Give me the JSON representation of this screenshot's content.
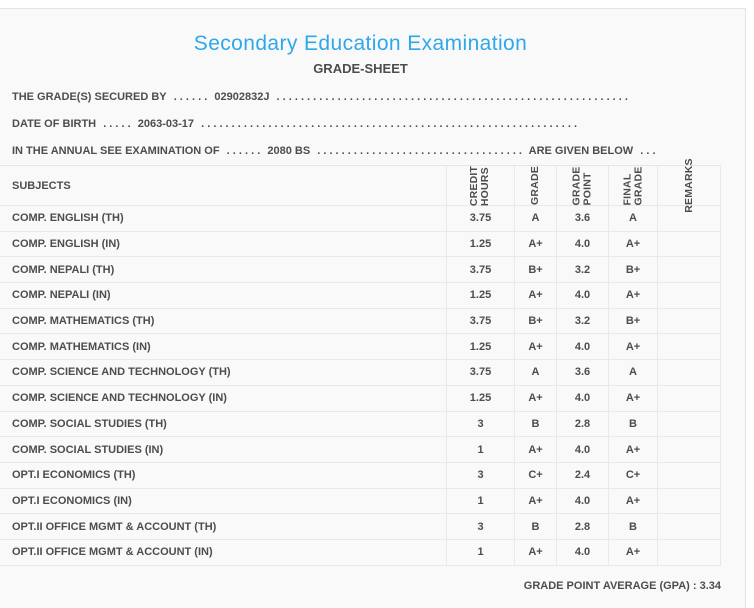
{
  "colors": {
    "accent_blue": "#2fa8e9",
    "panel_bg": "#f9f9f9",
    "text": "#4d4d4d",
    "line": "#e9e9e9"
  },
  "header": {
    "title": "Secondary Education Examination",
    "subtitle": "GRADE-SHEET"
  },
  "info_lines": {
    "line1": {
      "label": "THE GRADE(S) SECURED BY",
      "dots_before": ". . . . . .",
      "value": "02902832J",
      "dots_after": ". . . . . . . . . . . . . . . . . . . . . . . . . . . . . . . . . . . . . . . . . . . . . . . . . . . . . . . . . ."
    },
    "line2": {
      "label": "DATE OF BIRTH",
      "dots_before": ". . . . .",
      "value": "2063-03-17",
      "dots_after": ". . . . . . . . . . . . . . . . . . . . . . . . . . . . . . . . . . . . . . . . . . . . . . . . . . . . . . . . . . . . . ."
    },
    "line3": {
      "label": "IN THE ANNUAL SEE EXAMINATION OF",
      "dots_before": ". . . . . .",
      "value": "2080 BS",
      "dots_after": ". . . . . . . . . . . . . . . . . . . . . . . . . . . . . . . . . .",
      "suffix": "ARE GIVEN BELOW",
      "dots_end": ". . ."
    }
  },
  "table": {
    "subjects_header": "SUBJECTS",
    "column_headers": {
      "credit_hours": "CREDIT\nHOURS",
      "grade": "GRADE",
      "grade_point": "GRADE\nPOINT",
      "final_grade": "FINAL\nGRADE",
      "remarks": "REMARKS"
    },
    "rows": [
      {
        "subject": "COMP. ENGLISH (TH)",
        "credit_hours": "3.75",
        "grade": "A",
        "grade_point": "3.6",
        "final_grade": "A",
        "remarks": ""
      },
      {
        "subject": "COMP. ENGLISH (IN)",
        "credit_hours": "1.25",
        "grade": "A+",
        "grade_point": "4.0",
        "final_grade": "A+",
        "remarks": ""
      },
      {
        "subject": "COMP. NEPALI (TH)",
        "credit_hours": "3.75",
        "grade": "B+",
        "grade_point": "3.2",
        "final_grade": "B+",
        "remarks": ""
      },
      {
        "subject": "COMP. NEPALI (IN)",
        "credit_hours": "1.25",
        "grade": "A+",
        "grade_point": "4.0",
        "final_grade": "A+",
        "remarks": ""
      },
      {
        "subject": "COMP. MATHEMATICS (TH)",
        "credit_hours": "3.75",
        "grade": "B+",
        "grade_point": "3.2",
        "final_grade": "B+",
        "remarks": ""
      },
      {
        "subject": "COMP. MATHEMATICS (IN)",
        "credit_hours": "1.25",
        "grade": "A+",
        "grade_point": "4.0",
        "final_grade": "A+",
        "remarks": ""
      },
      {
        "subject": "COMP. SCIENCE AND TECHNOLOGY (TH)",
        "credit_hours": "3.75",
        "grade": "A",
        "grade_point": "3.6",
        "final_grade": "A",
        "remarks": ""
      },
      {
        "subject": "COMP. SCIENCE AND TECHNOLOGY (IN)",
        "credit_hours": "1.25",
        "grade": "A+",
        "grade_point": "4.0",
        "final_grade": "A+",
        "remarks": ""
      },
      {
        "subject": "COMP. SOCIAL STUDIES (TH)",
        "credit_hours": "3",
        "grade": "B",
        "grade_point": "2.8",
        "final_grade": "B",
        "remarks": ""
      },
      {
        "subject": "COMP. SOCIAL STUDIES (IN)",
        "credit_hours": "1",
        "grade": "A+",
        "grade_point": "4.0",
        "final_grade": "A+",
        "remarks": ""
      },
      {
        "subject": "OPT.I ECONOMICS (TH)",
        "credit_hours": "3",
        "grade": "C+",
        "grade_point": "2.4",
        "final_grade": "C+",
        "remarks": ""
      },
      {
        "subject": "OPT.I ECONOMICS (IN)",
        "credit_hours": "1",
        "grade": "A+",
        "grade_point": "4.0",
        "final_grade": "A+",
        "remarks": ""
      },
      {
        "subject": "OPT.II OFFICE MGMT & ACCOUNT (TH)",
        "credit_hours": "3",
        "grade": "B",
        "grade_point": "2.8",
        "final_grade": "B",
        "remarks": ""
      },
      {
        "subject": "OPT.II OFFICE MGMT & ACCOUNT (IN)",
        "credit_hours": "1",
        "grade": "A+",
        "grade_point": "4.0",
        "final_grade": "A+",
        "remarks": ""
      }
    ]
  },
  "footer": {
    "gpa_text": "GRADE POINT AVERAGE (GPA) : 3.34"
  }
}
